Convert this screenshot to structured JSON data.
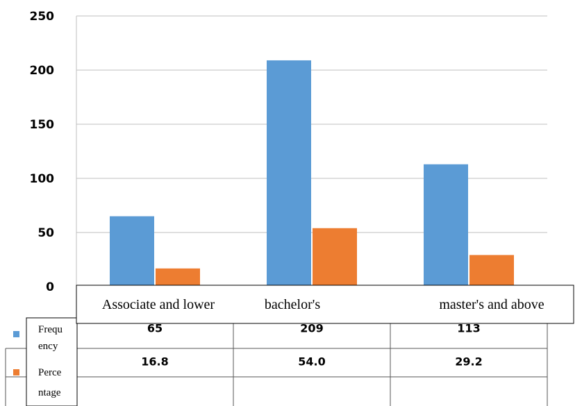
{
  "chart_data": {
    "type": "bar",
    "categories": [
      "Associate and lower",
      "bachelor's",
      "master's and above"
    ],
    "series": [
      {
        "name": "Frequency",
        "name_lines": [
          "Frequ",
          "ency"
        ],
        "color": "#5B9BD5",
        "values": [
          65,
          209,
          113
        ]
      },
      {
        "name": "Percentage",
        "name_lines": [
          "Perce",
          "ntage"
        ],
        "color": "#ED7D31",
        "values": [
          16.8,
          54.0,
          29.2
        ]
      }
    ],
    "table_values": [
      [
        "65",
        "209",
        "113"
      ],
      [
        "16.8",
        "54.0",
        "29.2"
      ]
    ],
    "ylim": [
      0,
      250
    ],
    "yticks": [
      0,
      50,
      100,
      150,
      200,
      250
    ],
    "grid": true,
    "title": "",
    "xlabel": "",
    "ylabel": ""
  }
}
